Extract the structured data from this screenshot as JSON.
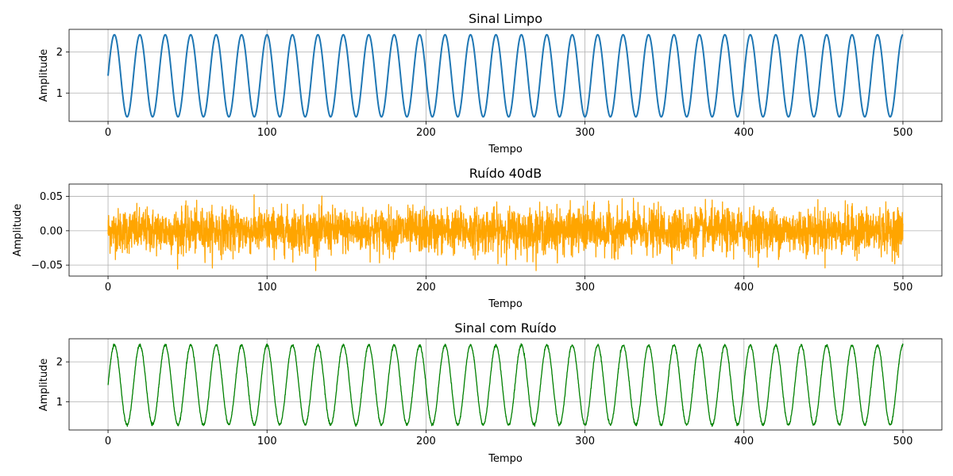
{
  "chart_data": [
    {
      "type": "line",
      "title": "Sinal Limpo",
      "xlabel": "Tempo",
      "ylabel": "Amplitude",
      "xlim": [
        -24.5,
        524.5
      ],
      "ylim": [
        0.31,
        2.55
      ],
      "xticks": [
        0,
        100,
        200,
        300,
        400,
        500
      ],
      "xtick_labels": [
        "0",
        "100",
        "200",
        "300",
        "400",
        "500"
      ],
      "yticks": [
        1,
        2
      ],
      "ytick_labels": [
        "1",
        "2"
      ],
      "grid": true,
      "series": [
        {
          "color": "#1f77b4",
          "kind": "sine",
          "offset": 1.42,
          "amplitude": 1.0,
          "period": 16,
          "x_range": [
            0,
            500
          ],
          "noise_std": 0
        }
      ]
    },
    {
      "type": "line",
      "title": "Ruído 40dB",
      "xlabel": "Tempo",
      "ylabel": "Amplitude",
      "xlim": [
        -24.5,
        524.5
      ],
      "ylim": [
        -0.066,
        0.068
      ],
      "xticks": [
        0,
        100,
        200,
        300,
        400,
        500
      ],
      "xtick_labels": [
        "0",
        "100",
        "200",
        "300",
        "400",
        "500"
      ],
      "yticks": [
        -0.05,
        0.0,
        0.05
      ],
      "ytick_labels": [
        "−0.05",
        "0.00",
        "0.05"
      ],
      "grid": true,
      "series": [
        {
          "color": "#ffa500",
          "kind": "noise",
          "offset": 0,
          "amplitude": 0,
          "period": 16,
          "x_range": [
            0,
            500
          ],
          "noise_std": 0.016
        }
      ]
    },
    {
      "type": "line",
      "title": "Sinal com Ruído",
      "xlabel": "Tempo",
      "ylabel": "Amplitude",
      "xlim": [
        -24.5,
        524.5
      ],
      "ylim": [
        0.29,
        2.58
      ],
      "xticks": [
        0,
        100,
        200,
        300,
        400,
        500
      ],
      "xtick_labels": [
        "0",
        "100",
        "200",
        "300",
        "400",
        "500"
      ],
      "yticks": [
        1,
        2
      ],
      "ytick_labels": [
        "1",
        "2"
      ],
      "grid": true,
      "series": [
        {
          "color": "#008000",
          "kind": "sine",
          "offset": 1.42,
          "amplitude": 1.0,
          "period": 16,
          "x_range": [
            0,
            500
          ],
          "noise_std": 0.016
        }
      ]
    }
  ]
}
